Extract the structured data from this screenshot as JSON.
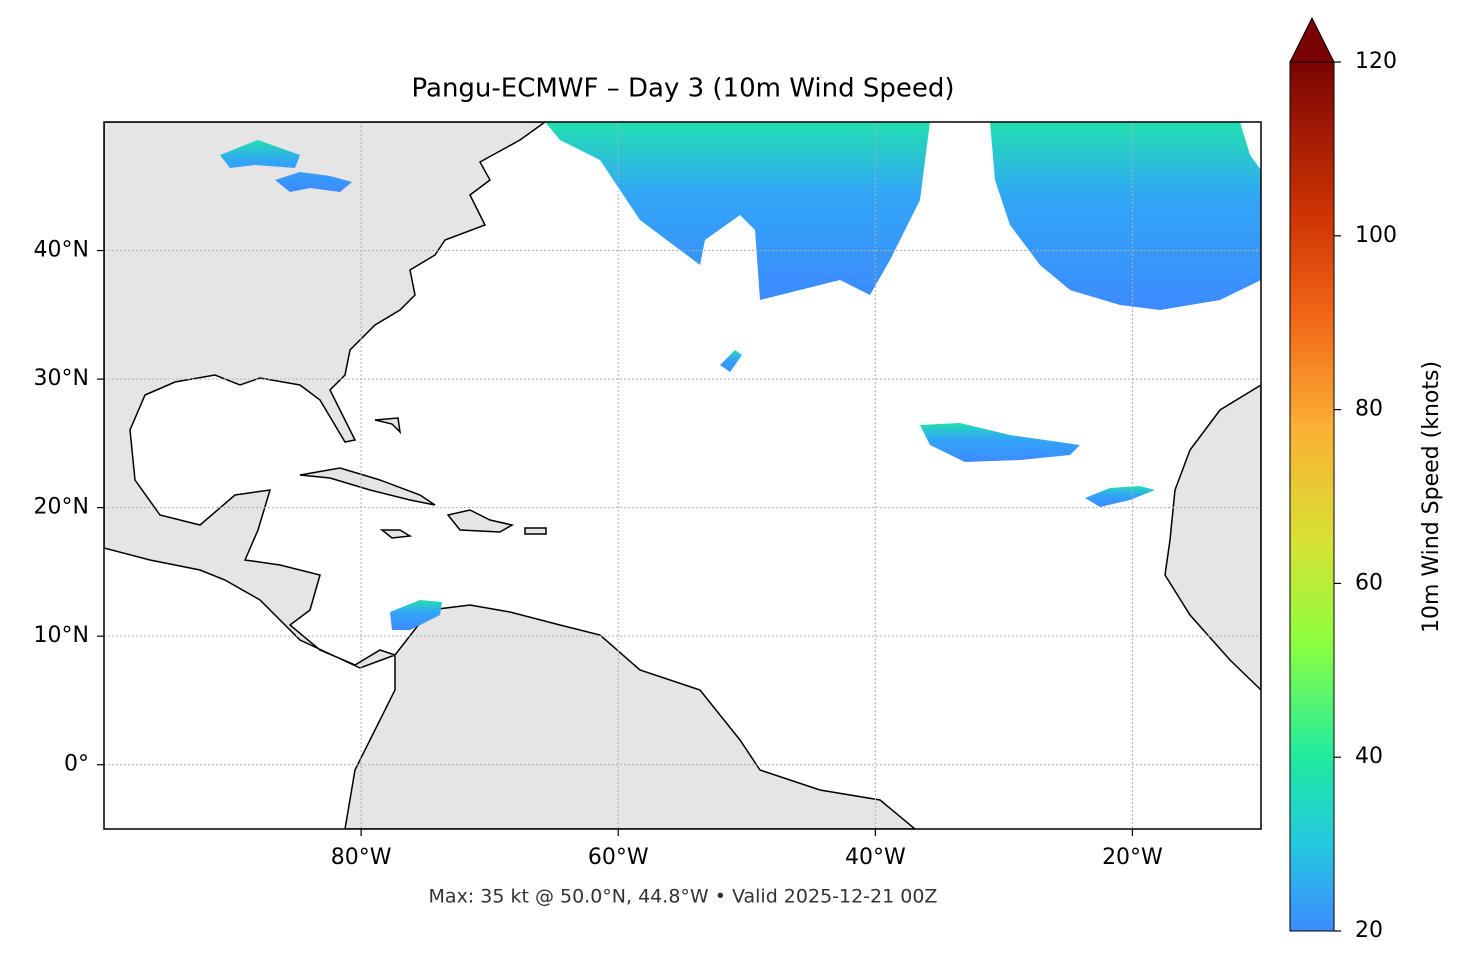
{
  "chart_data": {
    "type": "map",
    "title": "Pangu-ECMWF – Day 3 (10m Wind Speed)",
    "xlim": [
      -100,
      -10
    ],
    "ylim": [
      -5,
      50
    ],
    "xticks": [
      {
        "value": -80,
        "label": "80°W"
      },
      {
        "value": -60,
        "label": "60°W"
      },
      {
        "value": -40,
        "label": "40°W"
      },
      {
        "value": -20,
        "label": "20°W"
      }
    ],
    "yticks": [
      {
        "value": 0,
        "label": "0°"
      },
      {
        "value": 10,
        "label": "10°N"
      },
      {
        "value": 20,
        "label": "20°N"
      },
      {
        "value": 30,
        "label": "30°N"
      },
      {
        "value": 40,
        "label": "40°N"
      }
    ],
    "grid": true,
    "colorbar": {
      "label": "10m Wind Speed (knots)",
      "lim": [
        20,
        120
      ],
      "ticks": [
        20,
        40,
        60,
        80,
        100,
        120
      ]
    },
    "note": "Max: 35 kt @ 50.0°N, 44.8°W • Valid 2025-12-21 00Z"
  }
}
